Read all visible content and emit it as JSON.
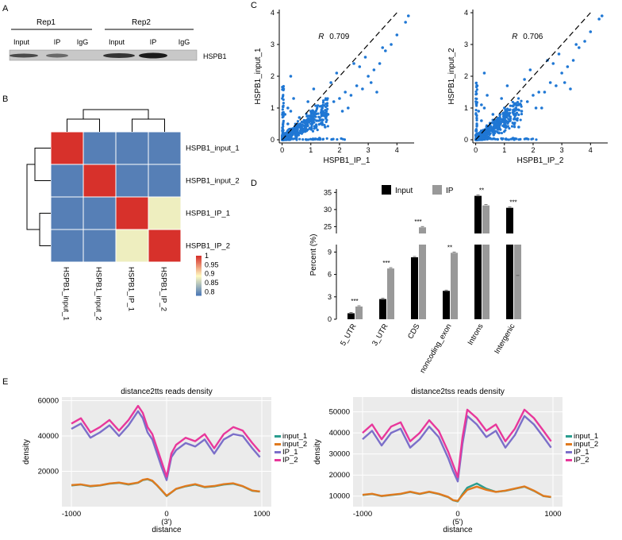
{
  "panels": {
    "A": "A",
    "B": "B",
    "C": "C",
    "D": "D",
    "E": "E"
  },
  "western_blot": {
    "groups": [
      "Rep1",
      "Rep2"
    ],
    "lanes": [
      "Input",
      "IP",
      "IgG",
      "Input",
      "IP",
      "IgG"
    ],
    "protein_label": "HSPB1"
  },
  "chart_data": [
    {
      "id": "heatmap",
      "type": "heatmap",
      "row_labels": [
        "HSPB1_input_1",
        "HSPB1_input_2",
        "HSPB1_IP_1",
        "HSPB1_IP_2"
      ],
      "col_labels": [
        "HSPB1_input_1",
        "HSPB1_input_2",
        "HSPB1_IP_1",
        "HSPB1_IP_2"
      ],
      "values": [
        [
          1.0,
          0.79,
          0.79,
          0.79
        ],
        [
          0.79,
          1.0,
          0.79,
          0.79
        ],
        [
          0.79,
          0.79,
          1.0,
          0.88
        ],
        [
          0.79,
          0.79,
          0.88,
          1.0
        ]
      ],
      "colorbar_ticks": [
        "1",
        "0.95",
        "0.9",
        "0.85",
        "0.8"
      ],
      "colorbar_range": [
        0.78,
        1.0
      ],
      "colors": {
        "low": "#4573b5",
        "mid": "#fffac0",
        "high": "#d7312b"
      }
    },
    {
      "id": "scatter1",
      "type": "scatter",
      "xlabel": "HSPB1_IP_1",
      "ylabel": "HSPB1_input_1",
      "xlim": [
        -0.1,
        4.6
      ],
      "ylim": [
        -0.1,
        4.1
      ],
      "x_ticks": [
        "0",
        "1",
        "2",
        "3",
        "4"
      ],
      "y_ticks": [
        "0",
        "1",
        "2",
        "3",
        "4"
      ],
      "r_label": "R",
      "r_value": "0.709",
      "color": "#1f77d4",
      "points": [
        [
          0.1,
          0.2
        ],
        [
          0.2,
          0.5
        ],
        [
          0.3,
          0.9
        ],
        [
          0.5,
          0.3
        ],
        [
          0.6,
          0.7
        ],
        [
          0.8,
          0.4
        ],
        [
          1.0,
          0.9
        ],
        [
          1.2,
          0.6
        ],
        [
          1.4,
          1.0
        ],
        [
          1.6,
          0.8
        ],
        [
          1.8,
          1.2
        ],
        [
          2.0,
          1.3
        ],
        [
          2.2,
          1.5
        ],
        [
          2.4,
          1.4
        ],
        [
          2.6,
          1.7
        ],
        [
          2.8,
          1.6
        ],
        [
          3.0,
          2.0
        ],
        [
          3.2,
          2.2
        ],
        [
          3.4,
          2.4
        ],
        [
          3.6,
          2.8
        ],
        [
          3.8,
          3.0
        ],
        [
          4.0,
          3.3
        ],
        [
          4.4,
          3.9
        ],
        [
          4.3,
          3.7
        ],
        [
          2.5,
          2.4
        ],
        [
          2.9,
          2.6
        ],
        [
          3.1,
          1.8
        ],
        [
          1.9,
          2.1
        ],
        [
          0.4,
          1.3
        ],
        [
          0.2,
          1.0
        ],
        [
          0.1,
          0.8
        ],
        [
          0.3,
          2.0
        ],
        [
          1.1,
          1.6
        ],
        [
          1.5,
          0.4
        ],
        [
          2.3,
          1.0
        ],
        [
          3.3,
          1.5
        ],
        [
          0.15,
          0.05
        ],
        [
          0.5,
          0.05
        ],
        [
          1.3,
          0.05
        ],
        [
          0.05,
          1.6
        ],
        [
          3.5,
          2.9
        ],
        [
          2.7,
          2.3
        ],
        [
          1.7,
          1.8
        ],
        [
          0.9,
          1.2
        ],
        [
          2.1,
          0.9
        ]
      ]
    },
    {
      "id": "scatter2",
      "type": "scatter",
      "xlabel": "HSPB1_IP_2",
      "ylabel": "HSPB1_input_2",
      "xlim": [
        -0.1,
        4.6
      ],
      "ylim": [
        -0.1,
        4.1
      ],
      "x_ticks": [
        "0",
        "1",
        "2",
        "3",
        "4"
      ],
      "y_ticks": [
        "0",
        "1",
        "2",
        "3",
        "4"
      ],
      "r_label": "R",
      "r_value": "0.706",
      "color": "#1f77d4",
      "points": [
        [
          0.1,
          0.2
        ],
        [
          0.2,
          0.6
        ],
        [
          0.3,
          1.0
        ],
        [
          0.5,
          0.3
        ],
        [
          0.6,
          0.8
        ],
        [
          0.8,
          0.4
        ],
        [
          1.0,
          1.0
        ],
        [
          1.2,
          0.6
        ],
        [
          1.4,
          1.0
        ],
        [
          1.6,
          0.9
        ],
        [
          1.8,
          1.2
        ],
        [
          2.0,
          1.4
        ],
        [
          2.2,
          1.5
        ],
        [
          2.4,
          1.5
        ],
        [
          2.6,
          1.8
        ],
        [
          2.8,
          1.7
        ],
        [
          3.0,
          2.1
        ],
        [
          3.2,
          2.3
        ],
        [
          3.4,
          2.5
        ],
        [
          3.6,
          2.9
        ],
        [
          3.8,
          3.1
        ],
        [
          4.0,
          3.4
        ],
        [
          4.4,
          3.9
        ],
        [
          4.3,
          3.8
        ],
        [
          2.5,
          2.5
        ],
        [
          2.9,
          2.7
        ],
        [
          3.1,
          1.8
        ],
        [
          1.9,
          2.2
        ],
        [
          0.4,
          1.4
        ],
        [
          0.2,
          1.1
        ],
        [
          0.1,
          0.9
        ],
        [
          0.3,
          2.1
        ],
        [
          1.1,
          1.7
        ],
        [
          1.5,
          0.4
        ],
        [
          2.3,
          1.0
        ],
        [
          3.3,
          1.6
        ],
        [
          0.15,
          0.05
        ],
        [
          0.5,
          0.05
        ],
        [
          1.3,
          0.05
        ],
        [
          0.05,
          1.7
        ],
        [
          3.5,
          3.0
        ],
        [
          2.7,
          2.4
        ],
        [
          1.7,
          1.9
        ],
        [
          0.9,
          1.3
        ],
        [
          2.1,
          1.0
        ]
      ]
    },
    {
      "id": "barchart",
      "type": "bar",
      "ylabel": "Percent (%)",
      "categories": [
        "5_UTR",
        "3_UTR",
        "CDS",
        "noncoding_exon",
        "Introns",
        "Intergenic"
      ],
      "series": [
        {
          "name": "Input",
          "color": "#000000",
          "values": [
            0.8,
            2.7,
            8.3,
            3.8,
            34.0,
            30.5
          ]
        },
        {
          "name": "IP",
          "color": "#999999",
          "values": [
            1.7,
            6.8,
            24.8,
            8.9,
            31.2,
            10.5
          ]
        }
      ],
      "significance": [
        "***",
        "***",
        "***",
        "**",
        "**",
        "***"
      ],
      "y_ticks_lower": [
        "0",
        "3",
        "6",
        "9"
      ],
      "y_ticks_upper": [
        "25",
        "30",
        "35"
      ],
      "axis_break": [
        10,
        23
      ]
    },
    {
      "id": "density_tts",
      "type": "line",
      "title": "distance2tts reads density",
      "xlabel": "distance",
      "x_annotation": "(3')",
      "ylabel": "density",
      "x_ticks": [
        "-1000",
        "0",
        "1000"
      ],
      "y_ticks": [
        "20000",
        "40000",
        "60000"
      ],
      "xlim": [
        -1100,
        1100
      ],
      "ylim": [
        0,
        62000
      ],
      "legend": [
        "input_1",
        "input_2",
        "IP_1",
        "IP_2"
      ],
      "x": [
        -1000,
        -900,
        -800,
        -700,
        -600,
        -500,
        -400,
        -300,
        -250,
        -200,
        -150,
        -100,
        -50,
        0,
        50,
        100,
        200,
        300,
        400,
        500,
        600,
        700,
        800,
        900,
        980
      ],
      "series": [
        {
          "name": "input_1",
          "color": "#2a9d8f",
          "values": [
            12000,
            12500,
            11500,
            12000,
            13000,
            13500,
            12500,
            13500,
            15000,
            15500,
            14500,
            12000,
            9000,
            6000,
            8000,
            10000,
            11500,
            12500,
            11000,
            11500,
            12500,
            13000,
            11500,
            9000,
            8500
          ]
        },
        {
          "name": "input_2",
          "color": "#e07a1f",
          "values": [
            12200,
            12600,
            11700,
            12100,
            13100,
            13600,
            12700,
            13600,
            15200,
            15700,
            14700,
            12100,
            9200,
            6200,
            8100,
            10100,
            11700,
            12700,
            11200,
            11700,
            12700,
            13200,
            11600,
            9100,
            8600
          ]
        },
        {
          "name": "IP_1",
          "color": "#7b6fc9",
          "values": [
            44000,
            47000,
            39000,
            42000,
            46000,
            40000,
            46000,
            54000,
            50000,
            42000,
            38000,
            30000,
            22000,
            15000,
            28000,
            32000,
            36000,
            34000,
            38000,
            30000,
            38000,
            41000,
            40000,
            33000,
            28000
          ]
        },
        {
          "name": "IP_2",
          "color": "#e8379b",
          "values": [
            47000,
            50000,
            42000,
            45000,
            49000,
            43000,
            49000,
            57000,
            53000,
            45000,
            41000,
            33000,
            25000,
            17000,
            30000,
            35000,
            39000,
            37000,
            41000,
            33000,
            41000,
            45000,
            43000,
            36000,
            31000
          ]
        }
      ]
    },
    {
      "id": "density_tss",
      "type": "line",
      "title": "distance2tss reads density",
      "xlabel": "distance",
      "x_annotation": "(5')",
      "ylabel": "density",
      "x_ticks": [
        "-1000",
        "0",
        "1000"
      ],
      "y_ticks": [
        "10000",
        "20000",
        "30000",
        "40000",
        "50000"
      ],
      "xlim": [
        -1100,
        1100
      ],
      "ylim": [
        5000,
        57000
      ],
      "legend": [
        "input_1",
        "input_2",
        "IP_1",
        "IP_2"
      ],
      "x": [
        -1000,
        -900,
        -800,
        -700,
        -600,
        -500,
        -400,
        -300,
        -200,
        -100,
        -50,
        0,
        50,
        100,
        200,
        300,
        400,
        500,
        600,
        700,
        800,
        900,
        980
      ],
      "series": [
        {
          "name": "input_1",
          "color": "#2a9d8f",
          "values": [
            10500,
            11000,
            10000,
            10500,
            11000,
            12000,
            11000,
            12000,
            11000,
            9500,
            8000,
            7500,
            11000,
            14000,
            16000,
            13500,
            12000,
            12500,
            13500,
            14500,
            12500,
            10000,
            9500
          ]
        },
        {
          "name": "input_2",
          "color": "#e07a1f",
          "values": [
            10600,
            11100,
            10100,
            10600,
            11100,
            12100,
            11100,
            12100,
            11100,
            9600,
            8100,
            7700,
            10500,
            13000,
            14500,
            13000,
            12000,
            12600,
            13600,
            14600,
            12600,
            10100,
            9600
          ]
        },
        {
          "name": "IP_1",
          "color": "#7b6fc9",
          "values": [
            37000,
            41000,
            34000,
            40000,
            42000,
            33000,
            37000,
            43000,
            38000,
            28000,
            22000,
            17000,
            35000,
            48000,
            44000,
            38000,
            41000,
            33000,
            39000,
            48000,
            44000,
            38000,
            33000
          ]
        },
        {
          "name": "IP_2",
          "color": "#e8379b",
          "values": [
            40000,
            44000,
            37000,
            43000,
            45000,
            36000,
            40000,
            46000,
            41000,
            31000,
            25000,
            19000,
            38000,
            51000,
            47000,
            41000,
            44000,
            36000,
            42000,
            51000,
            47000,
            41000,
            36000
          ]
        }
      ]
    }
  ]
}
